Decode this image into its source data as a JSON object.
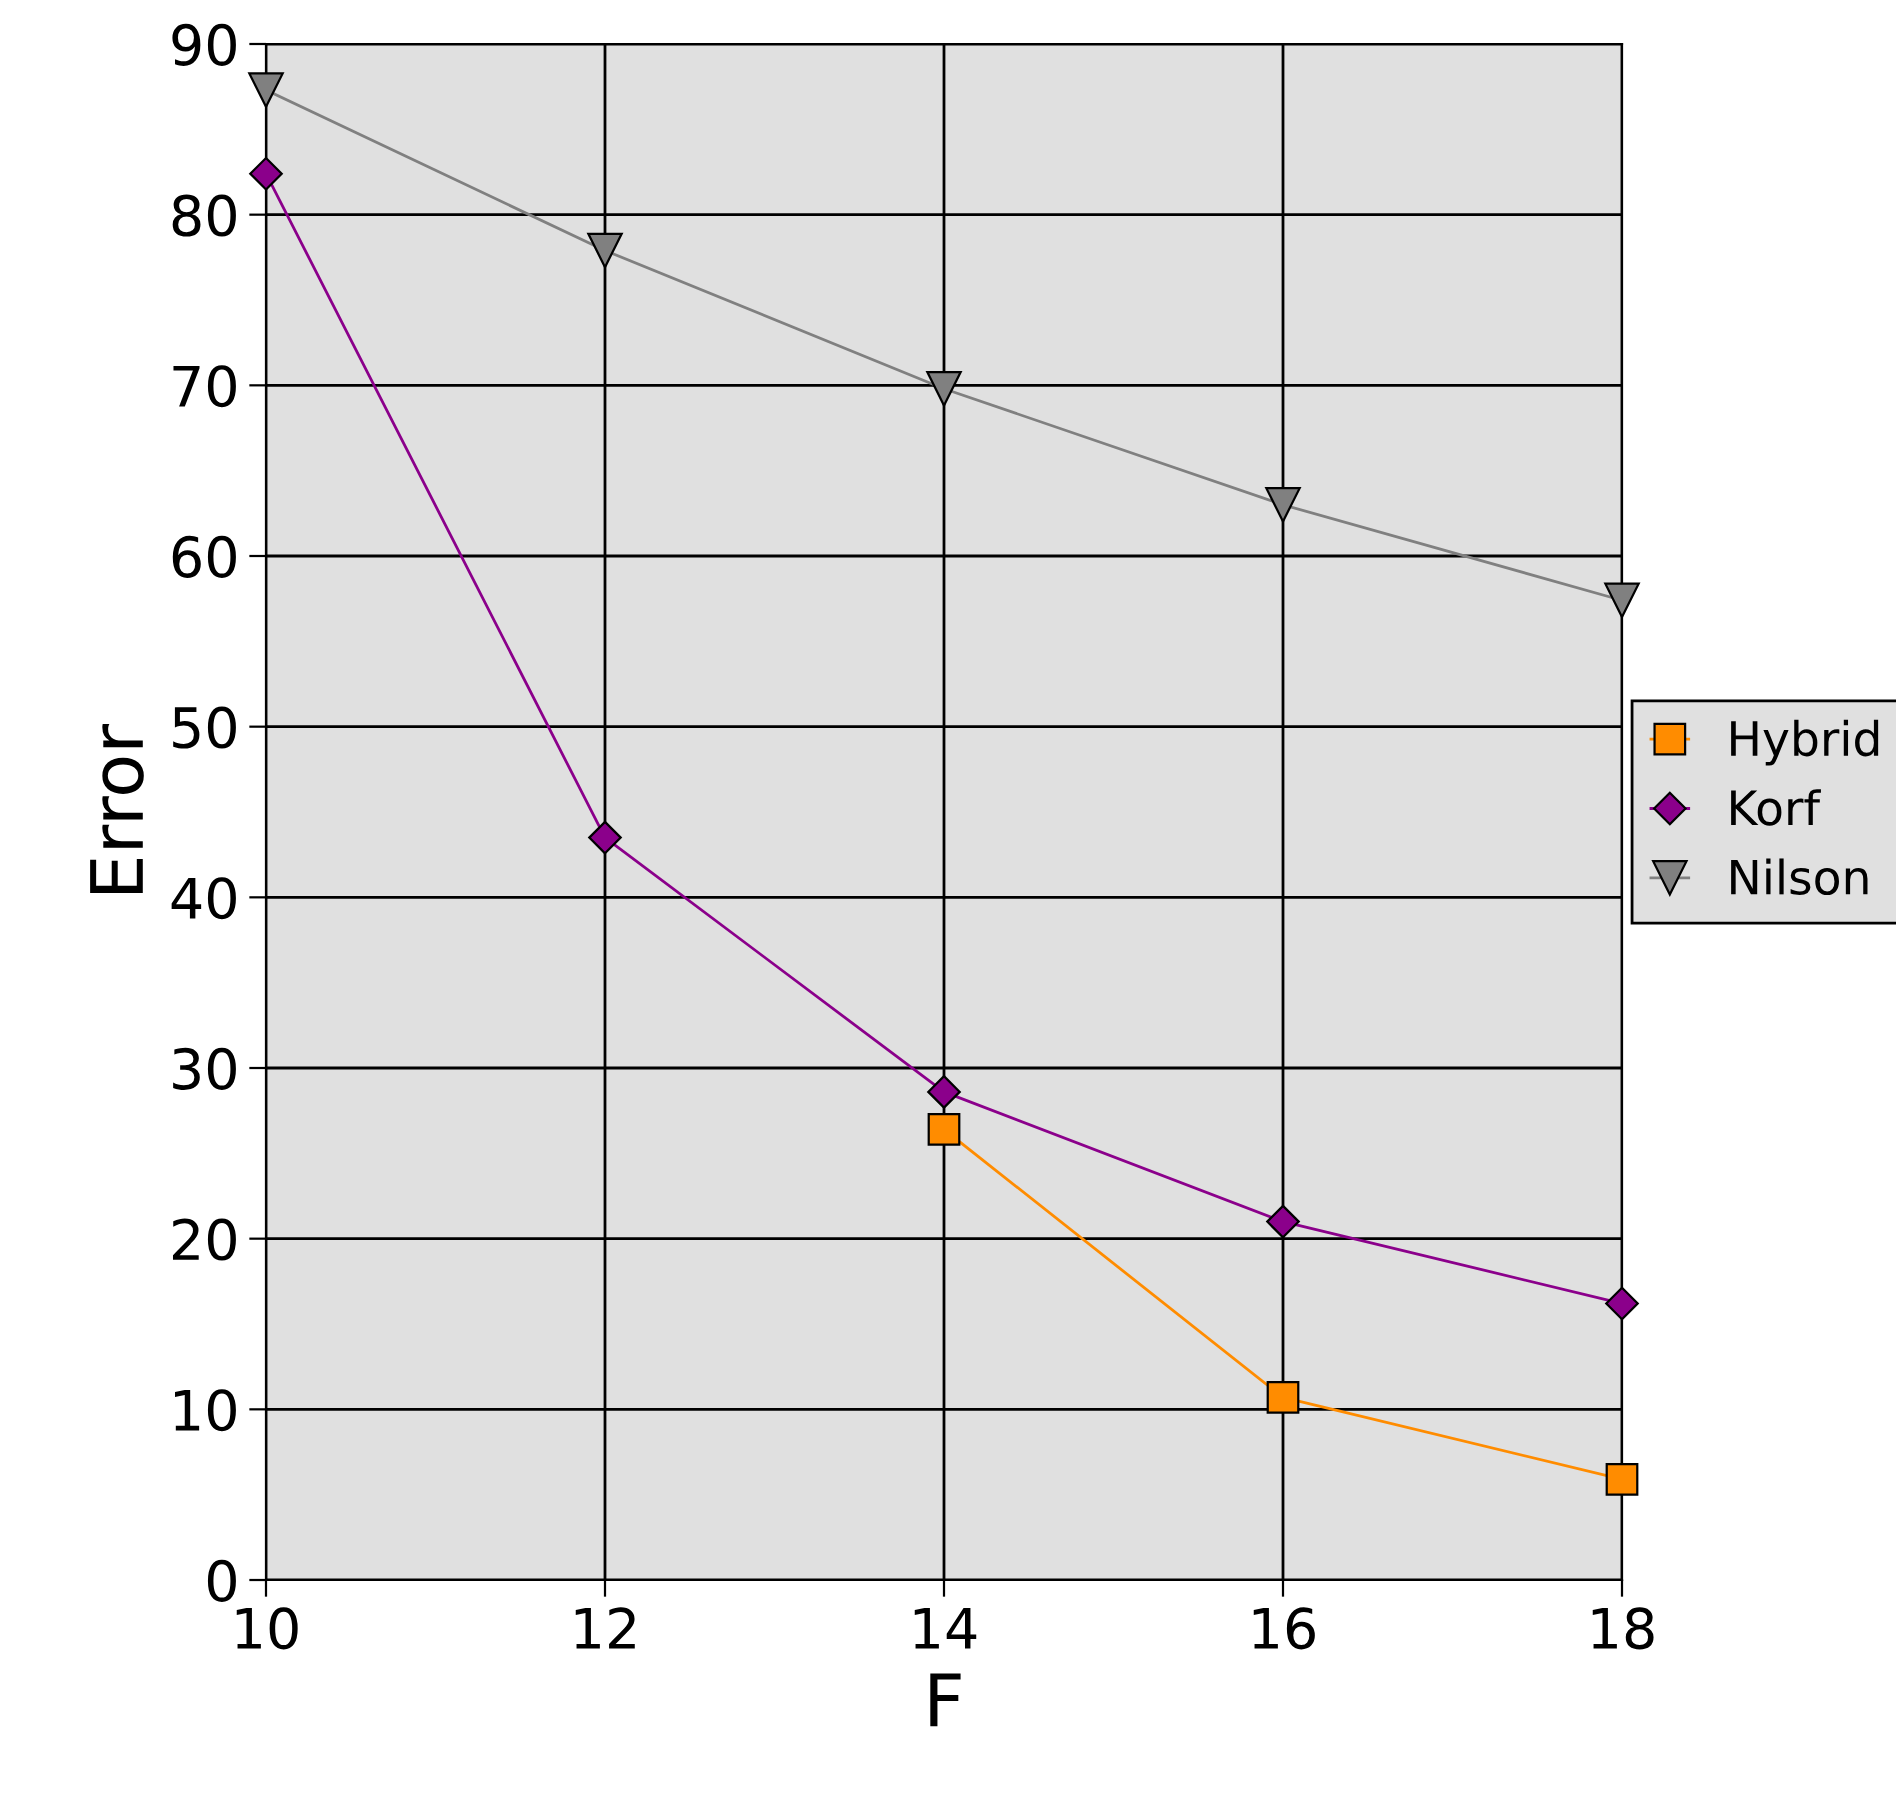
{
  "chart_data": {
    "type": "line",
    "xlabel": "F",
    "ylabel": "Error",
    "x": [
      10,
      12,
      14,
      16,
      18
    ],
    "series": [
      {
        "name": "Hybrid",
        "color": "#ff8c00",
        "marker": "square",
        "values": [
          null,
          null,
          26.4,
          10.7,
          5.9
        ]
      },
      {
        "name": "Korf",
        "color": "#8b008b",
        "marker": "diamond",
        "values": [
          82.4,
          43.5,
          28.6,
          21.0,
          16.2
        ]
      },
      {
        "name": "Nilson",
        "color": "#808080",
        "marker": "triangle-down",
        "values": [
          87.3,
          77.9,
          69.8,
          63.0,
          57.4
        ]
      }
    ],
    "xlim": [
      10,
      18
    ],
    "xticks": [
      10,
      12,
      14,
      16,
      18
    ],
    "ylim": [
      0,
      90
    ],
    "yticks": [
      0,
      10,
      20,
      30,
      40,
      50,
      60,
      70,
      80,
      90
    ],
    "grid": true,
    "legend": "right",
    "line_style": "solid"
  }
}
